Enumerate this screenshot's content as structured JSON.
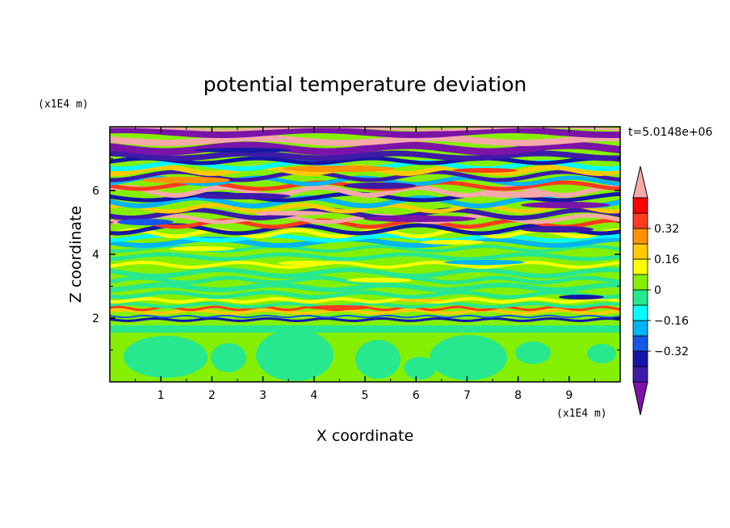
{
  "chart_data": {
    "type": "heatmap",
    "title": "potential temperature deviation",
    "xlabel": "X coordinate",
    "ylabel": "Z coordinate",
    "x_unit": "(x1E4 m)",
    "y_unit": "(x1E4 m)",
    "time_label": "t=5.0148e+06",
    "xlim": [
      0,
      10
    ],
    "ylim": [
      0,
      8
    ],
    "x_ticks": [
      1,
      2,
      3,
      4,
      5,
      6,
      7,
      8,
      9
    ],
    "y_ticks": [
      2,
      4,
      6
    ],
    "colorbar": {
      "levels": [
        -0.48,
        -0.4,
        -0.32,
        -0.24,
        -0.16,
        -0.08,
        0,
        0.08,
        0.16,
        0.24,
        0.32,
        0.4,
        0.48
      ],
      "labeled_levels": [
        {
          "value": 0.32,
          "text": "0.32"
        },
        {
          "value": 0.16,
          "text": "0.16"
        },
        {
          "value": 0,
          "text": "0"
        },
        {
          "value": -0.16,
          "text": "−0.16"
        },
        {
          "value": -0.32,
          "text": "−0.32"
        }
      ],
      "colors": [
        "#7b13a8",
        "#3d1aa8",
        "#1616a6",
        "#1557e8",
        "#00b5f5",
        "#00ffff",
        "#27e88f",
        "#84f000",
        "#fbff00",
        "#ffcb00",
        "#ff9300",
        "#ff3b20",
        "#ff0000",
        "#f6a9a9"
      ]
    },
    "grid": false
  }
}
